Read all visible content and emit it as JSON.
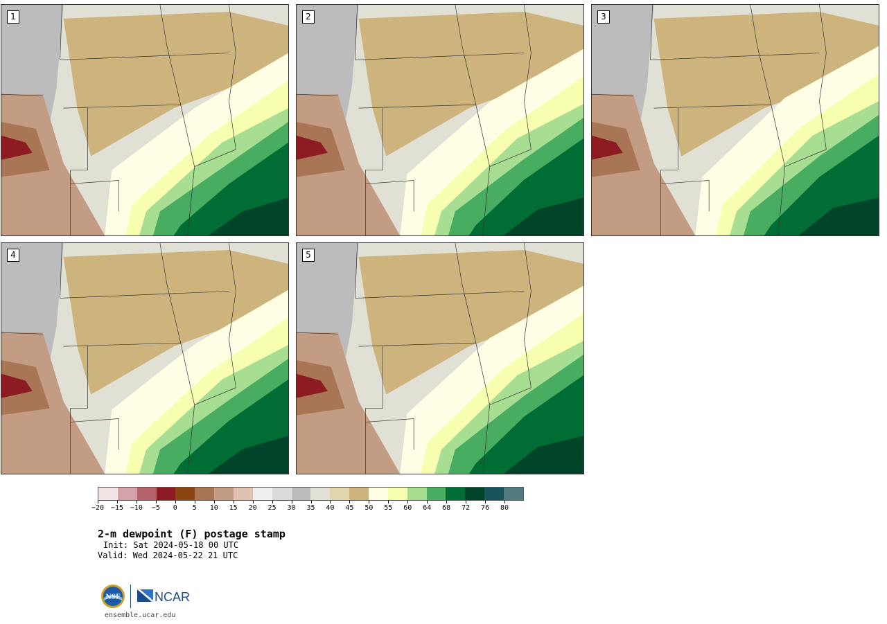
{
  "panels": [
    {
      "number": "1",
      "variant": 1
    },
    {
      "number": "2",
      "variant": 2
    },
    {
      "number": "3",
      "variant": 3
    },
    {
      "number": "4",
      "variant": 4
    },
    {
      "number": "5",
      "variant": 5
    }
  ],
  "colorbar": {
    "colors": [
      "#f3e4e6",
      "#d4a3aa",
      "#b3626b",
      "#8c1b22",
      "#8b4513",
      "#a87654",
      "#c39c84",
      "#dfc2b1",
      "#efefef",
      "#dbdbdb",
      "#bcbcbc",
      "#e1e0d4",
      "#e2d5ae",
      "#cdb47c",
      "#fffde4",
      "#f8feb0",
      "#a8de92",
      "#48ad60",
      "#006d35",
      "#00442a",
      "#19535c",
      "#537981"
    ],
    "tick_labels": [
      "−20",
      "−15",
      "−10",
      "−5",
      "0",
      "5",
      "10",
      "15",
      "20",
      "25",
      "30",
      "35",
      "40",
      "45",
      "50",
      "55",
      "60",
      "64",
      "68",
      "72",
      "76",
      "80"
    ]
  },
  "title": "2-m dewpoint (F) postage stamp",
  "init": "Init: Sat 2024-05-18 00 UTC",
  "valid": "Valid: Wed 2024-05-22 21 UTC",
  "logos": {
    "nsf": "NSF",
    "ncar": "NCAR"
  },
  "site": "ensemble.ucar.edu"
}
